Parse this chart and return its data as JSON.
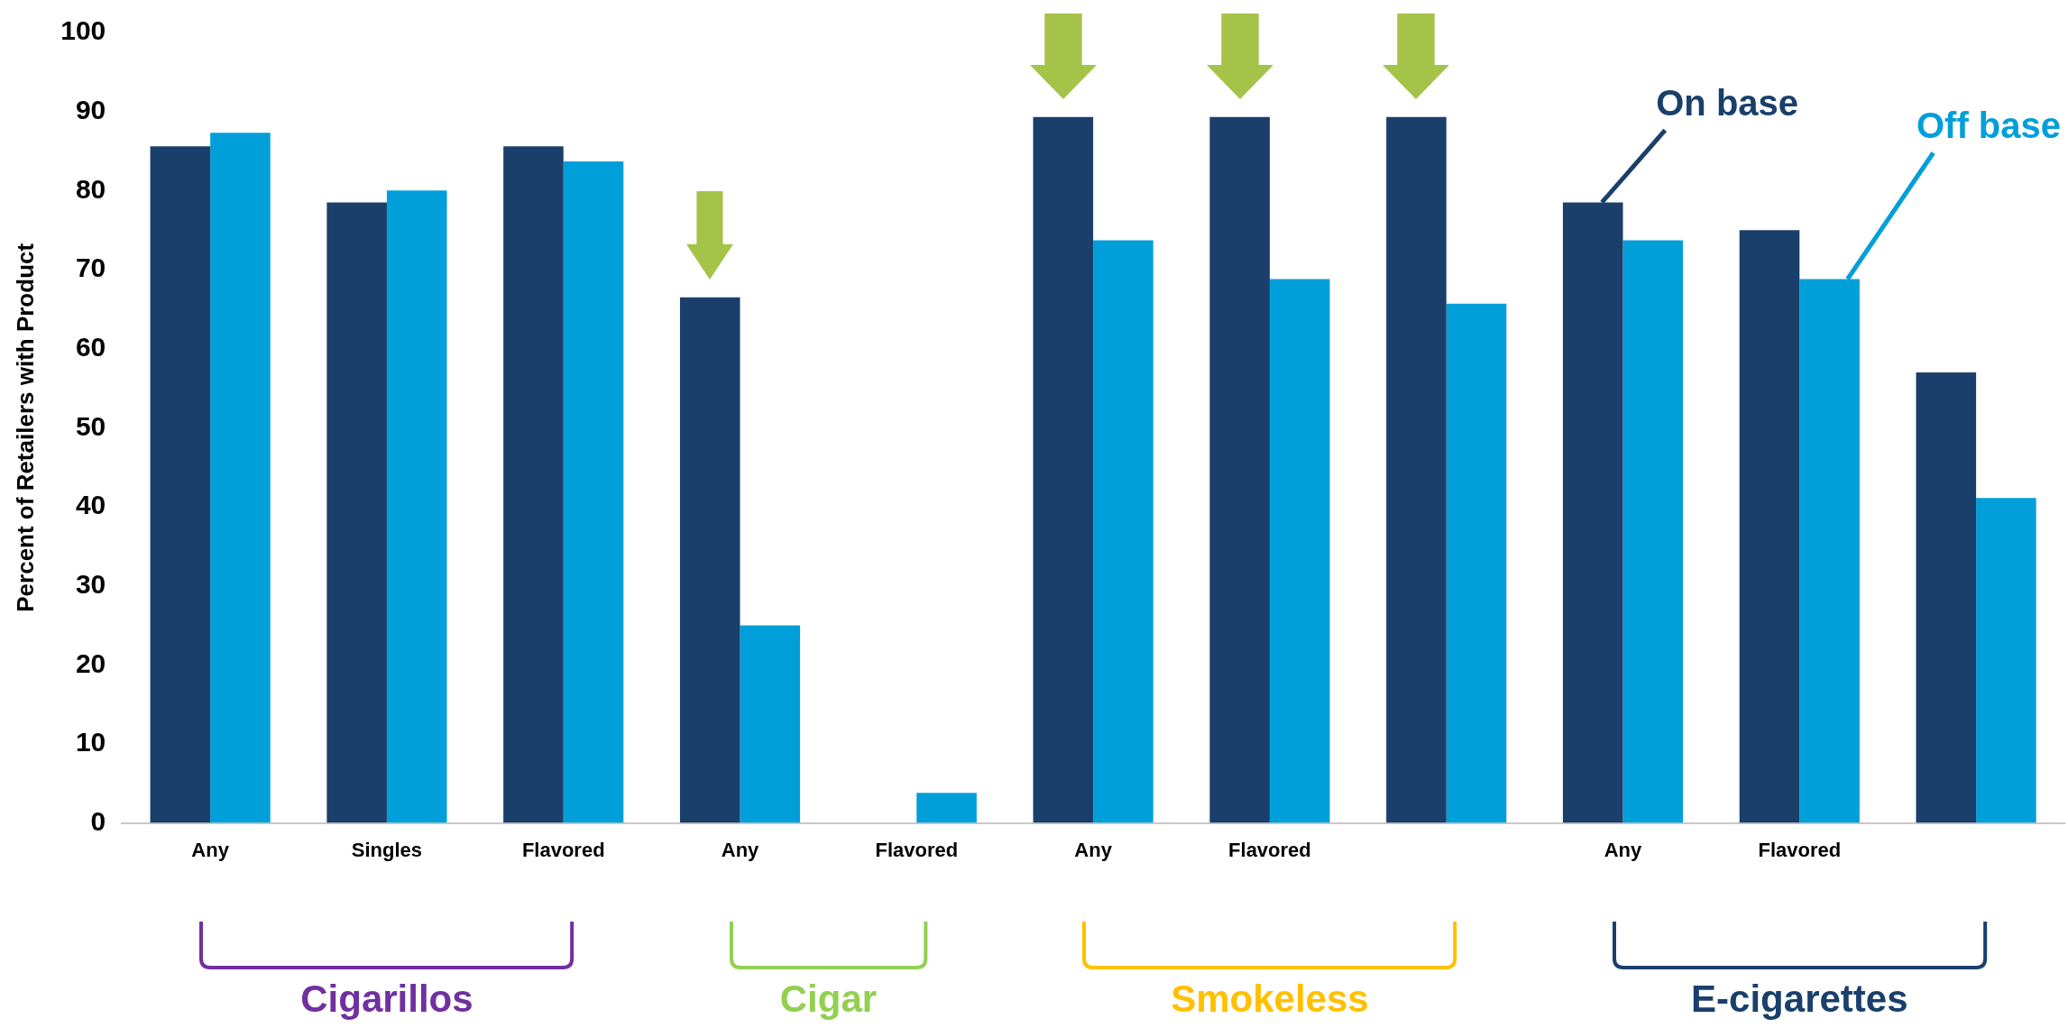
{
  "chart_data": {
    "type": "bar",
    "ylabel": "Percent of Retailers with Product",
    "categories": [
      "Any",
      "Singles",
      "Flavored",
      "Any",
      "Flavored",
      "Any",
      "Flavored",
      null,
      "Any",
      "Flavored",
      null
    ],
    "series": [
      {
        "name": "On base",
        "color": "#1a3f6b",
        "values": [
          85.6,
          78.5,
          85.6,
          66.5,
          0,
          89.3,
          89.3,
          89.3,
          78.5,
          75,
          57
        ]
      },
      {
        "name": "Off base",
        "color": "#009fda",
        "values": [
          87.3,
          80,
          83.7,
          25,
          3.8,
          73.7,
          68.8,
          65.7,
          73.7,
          68.8,
          41.1
        ]
      }
    ],
    "ylim": [
      0,
      100
    ],
    "yticks": [
      0,
      10,
      20,
      30,
      40,
      50,
      60,
      70,
      80,
      90,
      100
    ],
    "grid": false,
    "legend": false,
    "annotations": [
      "Cigarillos",
      "Cigar",
      "Smokeless",
      "E-cigarettes"
    ]
  }
}
